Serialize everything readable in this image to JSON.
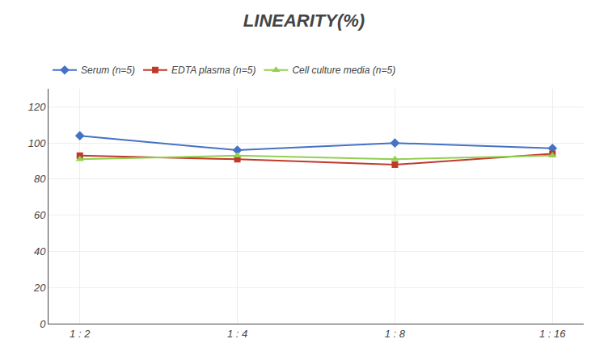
{
  "chart_data": {
    "type": "line",
    "title": "LINEARITY(%)",
    "categories": [
      "1 : 2",
      "1 : 4",
      "1 : 8",
      "1 : 16"
    ],
    "series": [
      {
        "name": "Serum (n=5)",
        "color": "#4472C4",
        "marker": "diamond",
        "values": [
          104,
          96,
          100,
          97
        ]
      },
      {
        "name": "EDTA plasma (n=5)",
        "color": "#C0392B",
        "marker": "square",
        "values": [
          93,
          91,
          88,
          94
        ]
      },
      {
        "name": "Cell culture media (n=5)",
        "color": "#92D050",
        "marker": "triangle",
        "values": [
          91,
          93,
          91,
          93
        ]
      }
    ],
    "ylim": [
      0,
      130
    ],
    "yticks": [
      0,
      20,
      40,
      60,
      80,
      100,
      120
    ],
    "grid": true,
    "legend": "top"
  }
}
